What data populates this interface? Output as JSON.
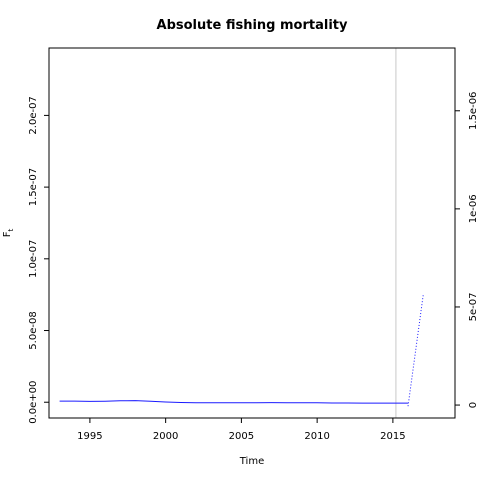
{
  "chart_data": {
    "type": "line",
    "title": "Absolute fishing mortality",
    "xlabel": "Time",
    "ylabel": "F",
    "ylabel_subscript": "t",
    "xlim": [
      1992.3,
      2019.1
    ],
    "ylim": [
      -1.1e-08,
      2.47e-07
    ],
    "xticks": [
      1995,
      2000,
      2005,
      2010,
      2015
    ],
    "xtick_labels": [
      "1995",
      "2000",
      "2005",
      "2010",
      "2015"
    ],
    "yticks": [
      0,
      5e-08,
      1e-07,
      1.5e-07,
      2e-07
    ],
    "ytick_labels": [
      "0.0e+00",
      "5.0e-08",
      "1.0e-07",
      "1.5e-07",
      "2.0e-07"
    ],
    "y2lim": [
      -6.6e-08,
      1.82e-06
    ],
    "y2ticks": [
      0,
      5e-07,
      1e-06,
      1.5e-06
    ],
    "y2tick_labels": [
      "0",
      "5e-07",
      "1e-06",
      "1.5e-06"
    ],
    "vline_x": 2015.2,
    "grid": false,
    "series": [
      {
        "color": "#1a1aff",
        "style": "solid",
        "axis": "left",
        "x": [
          1993,
          1994,
          1995,
          1996,
          1997,
          1998,
          1999,
          2000,
          2001,
          2002,
          2003,
          2004,
          2005,
          2006,
          2007,
          2008,
          2009,
          2010,
          2011,
          2012,
          2013,
          2014,
          2015,
          2016
        ],
        "values": [
          8e-10,
          8e-10,
          6e-10,
          7e-10,
          1e-09,
          1.1e-09,
          7e-10,
          2e-10,
          -2e-10,
          -4e-10,
          -4e-10,
          -4e-10,
          -4e-10,
          -4e-10,
          -3e-10,
          -4e-10,
          -4e-10,
          -4e-10,
          -5e-10,
          -5e-10,
          -6e-10,
          -6e-10,
          -6e-10,
          -6e-10
        ]
      },
      {
        "color": "#1a1aff",
        "style": "dotted",
        "axis": "right",
        "x": [
          2016,
          2017
        ],
        "values": [
          -6e-09,
          5.6e-07
        ]
      }
    ]
  }
}
